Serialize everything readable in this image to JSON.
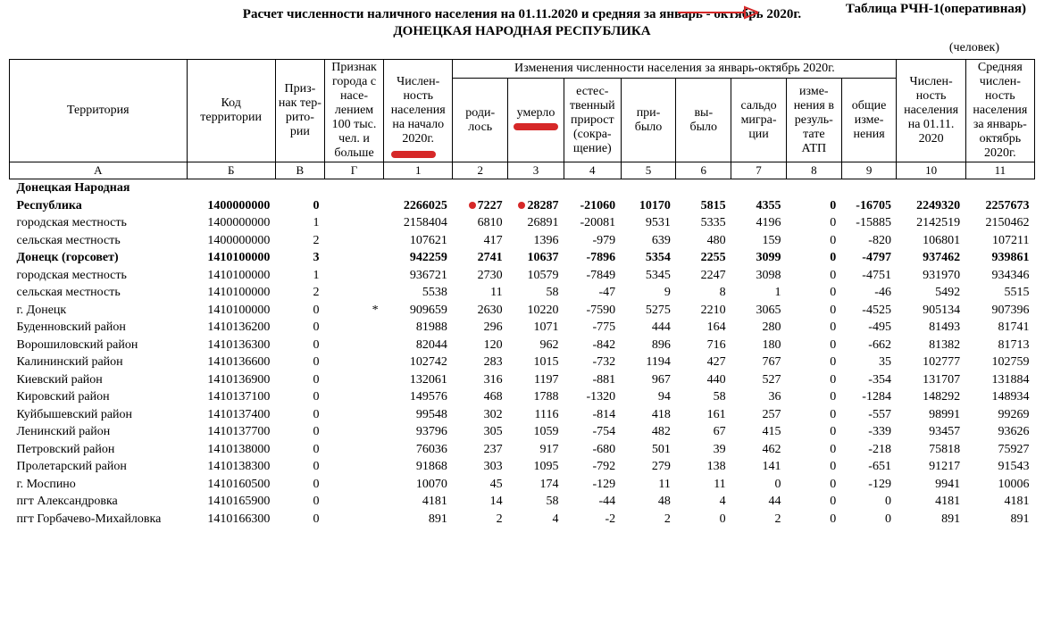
{
  "header": {
    "table_label": "Таблица РЧН-1(оперативная)",
    "title": "Расчет численности наличного населения на 01.11.2020 и средняя за январь - октябрь 2020г.",
    "subtitle": "ДОНЕЦКАЯ НАРОДНАЯ РЕСПУБЛИКА",
    "unit": "(человек)",
    "arrow_color": "#d62828"
  },
  "columns": {
    "terr": "Территория",
    "code": "Код территории",
    "priznak_terr": "Приз-\nнак тер-\nрито-\nрии",
    "priznak_city": "Признак города с насе-\nлением 100 тыс. чел. и больше",
    "pop_start": "Числен-\nность населения на начало 2020г.",
    "changes_group": "Изменения численности населения за январь-октябрь 2020г.",
    "born": "роди-\nлось",
    "died": "умерло",
    "nat_growth": "естес-\nтвенный прирост (сокра-\nщение)",
    "arrived": "при-\nбыло",
    "left": "вы-\nбыло",
    "migr_saldo": "сальдо мигра-\nции",
    "atp_change": "изме-\nнения в резуль-\nтате АТП",
    "total_change": "общие изме-\nнения",
    "pop_nov": "Числен-\nность населения на 01.11. 2020",
    "avg_pop": "Средняя числен-\nность населения за январь-\nоктябрь 2020г."
  },
  "letters": [
    "А",
    "Б",
    "В",
    "Г",
    "1",
    "2",
    "3",
    "4",
    "5",
    "6",
    "7",
    "8",
    "9",
    "10",
    "11"
  ],
  "rows": [
    {
      "n": "Донецкая Народная",
      "bold": true,
      "split": true
    },
    {
      "n": "Республика",
      "bold": true,
      "c": "1400000000",
      "v": "0",
      "g": "",
      "d": [
        "2266025",
        "7227",
        "28287",
        "-21060",
        "10170",
        "5815",
        "4355",
        "0",
        "-16705",
        "2249320",
        "2257673"
      ],
      "dot": true
    },
    {
      "n": "городская местность",
      "c": "1400000000",
      "v": "1",
      "g": "",
      "d": [
        "2158404",
        "6810",
        "26891",
        "-20081",
        "9531",
        "5335",
        "4196",
        "0",
        "-15885",
        "2142519",
        "2150462"
      ]
    },
    {
      "n": "сельская местность",
      "c": "1400000000",
      "v": "2",
      "g": "",
      "d": [
        "107621",
        "417",
        "1396",
        "-979",
        "639",
        "480",
        "159",
        "0",
        "-820",
        "106801",
        "107211"
      ]
    },
    {
      "n": "Донецк (горсовет)",
      "bold": true,
      "c": "1410100000",
      "v": "3",
      "g": "",
      "d": [
        "942259",
        "2741",
        "10637",
        "-7896",
        "5354",
        "2255",
        "3099",
        "0",
        "-4797",
        "937462",
        "939861"
      ]
    },
    {
      "n": "городская местность",
      "c": "1410100000",
      "v": "1",
      "g": "",
      "d": [
        "936721",
        "2730",
        "10579",
        "-7849",
        "5345",
        "2247",
        "3098",
        "0",
        "-4751",
        "931970",
        "934346"
      ]
    },
    {
      "n": "сельская местность",
      "c": "1410100000",
      "v": "2",
      "g": "",
      "d": [
        "5538",
        "11",
        "58",
        "-47",
        "9",
        "8",
        "1",
        "0",
        "-46",
        "5492",
        "5515"
      ]
    },
    {
      "n": "г. Донецк",
      "c": "1410100000",
      "v": "0",
      "g": "*",
      "d": [
        "909659",
        "2630",
        "10220",
        "-7590",
        "5275",
        "2210",
        "3065",
        "0",
        "-4525",
        "905134",
        "907396"
      ]
    },
    {
      "n": "Буденновский район",
      "c": "1410136200",
      "v": "0",
      "g": "",
      "d": [
        "81988",
        "296",
        "1071",
        "-775",
        "444",
        "164",
        "280",
        "0",
        "-495",
        "81493",
        "81741"
      ]
    },
    {
      "n": "Ворошиловский район",
      "c": "1410136300",
      "v": "0",
      "g": "",
      "d": [
        "82044",
        "120",
        "962",
        "-842",
        "896",
        "716",
        "180",
        "0",
        "-662",
        "81382",
        "81713"
      ]
    },
    {
      "n": "Калининский район",
      "c": "1410136600",
      "v": "0",
      "g": "",
      "d": [
        "102742",
        "283",
        "1015",
        "-732",
        "1194",
        "427",
        "767",
        "0",
        "35",
        "102777",
        "102759"
      ]
    },
    {
      "n": "Киевский район",
      "c": "1410136900",
      "v": "0",
      "g": "",
      "d": [
        "132061",
        "316",
        "1197",
        "-881",
        "967",
        "440",
        "527",
        "0",
        "-354",
        "131707",
        "131884"
      ]
    },
    {
      "n": "Кировский район",
      "c": "1410137100",
      "v": "0",
      "g": "",
      "d": [
        "149576",
        "468",
        "1788",
        "-1320",
        "94",
        "58",
        "36",
        "0",
        "-1284",
        "148292",
        "148934"
      ]
    },
    {
      "n": "Куйбышевский район",
      "c": "1410137400",
      "v": "0",
      "g": "",
      "d": [
        "99548",
        "302",
        "1116",
        "-814",
        "418",
        "161",
        "257",
        "0",
        "-557",
        "98991",
        "99269"
      ]
    },
    {
      "n": "Ленинский район",
      "c": "1410137700",
      "v": "0",
      "g": "",
      "d": [
        "93796",
        "305",
        "1059",
        "-754",
        "482",
        "67",
        "415",
        "0",
        "-339",
        "93457",
        "93626"
      ]
    },
    {
      "n": "Петровский район",
      "c": "1410138000",
      "v": "0",
      "g": "",
      "d": [
        "76036",
        "237",
        "917",
        "-680",
        "501",
        "39",
        "462",
        "0",
        "-218",
        "75818",
        "75927"
      ]
    },
    {
      "n": "Пролетарский район",
      "c": "1410138300",
      "v": "0",
      "g": "",
      "d": [
        "91868",
        "303",
        "1095",
        "-792",
        "279",
        "138",
        "141",
        "0",
        "-651",
        "91217",
        "91543"
      ]
    },
    {
      "n": "г. Моспино",
      "c": "1410160500",
      "v": "0",
      "g": "",
      "d": [
        "10070",
        "45",
        "174",
        "-129",
        "11",
        "11",
        "0",
        "0",
        "-129",
        "9941",
        "10006"
      ]
    },
    {
      "n": "пгт Александровка",
      "c": "1410165900",
      "v": "0",
      "g": "",
      "d": [
        "4181",
        "14",
        "58",
        "-44",
        "48",
        "4",
        "44",
        "0",
        "0",
        "4181",
        "4181"
      ]
    },
    {
      "n": "пгт Горбачево-Михайловка",
      "c": "1410166300",
      "v": "0",
      "g": "",
      "d": [
        "891",
        "2",
        "4",
        "-2",
        "2",
        "0",
        "2",
        "0",
        "0",
        "891",
        "891"
      ]
    }
  ]
}
